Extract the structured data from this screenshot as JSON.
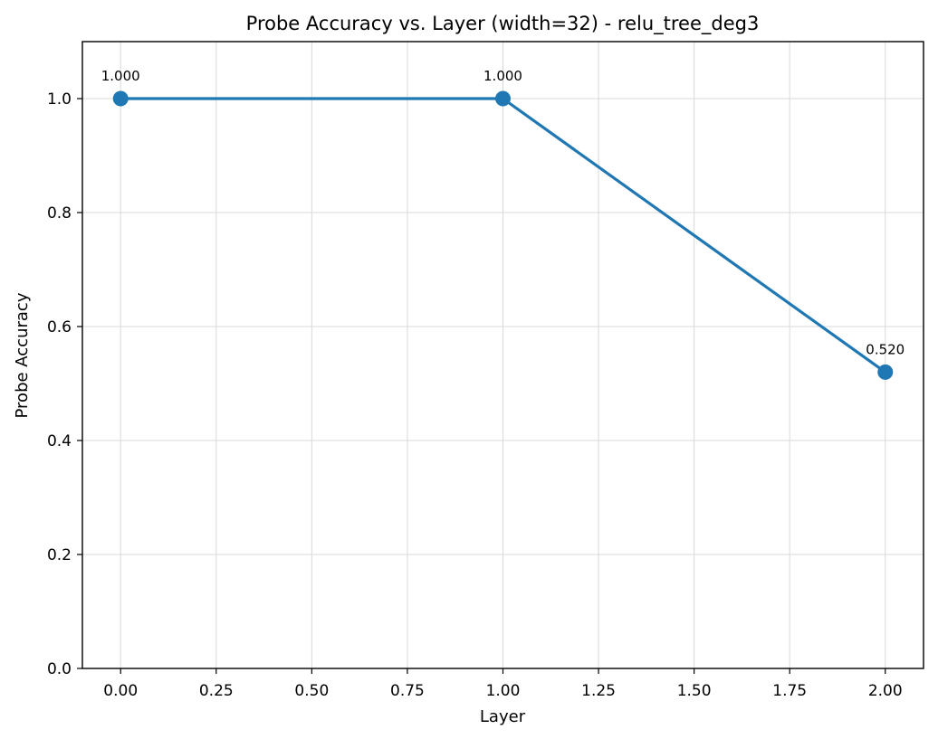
{
  "chart_data": {
    "type": "line",
    "title": "Probe Accuracy vs. Layer (width=32) - relu_tree_deg3",
    "xlabel": "Layer",
    "ylabel": "Probe Accuracy",
    "x": [
      0,
      1,
      2
    ],
    "series": [
      {
        "values": [
          1.0,
          1.0,
          0.52
        ],
        "labels": [
          "1.000",
          "1.000",
          "0.520"
        ]
      }
    ],
    "xlim": [
      -0.1,
      2.1
    ],
    "ylim": [
      0,
      1.1
    ],
    "xticks": [
      0,
      0.25,
      0.5,
      0.75,
      1.0,
      1.25,
      1.5,
      1.75,
      2.0
    ],
    "xtick_labels": [
      "0.00",
      "0.25",
      "0.50",
      "0.75",
      "1.00",
      "1.25",
      "1.50",
      "1.75",
      "2.00"
    ],
    "yticks": [
      0,
      0.2,
      0.4,
      0.6,
      0.8,
      1.0
    ],
    "ytick_labels": [
      "0.0",
      "0.2",
      "0.4",
      "0.6",
      "0.8",
      "1.0"
    ],
    "grid": true,
    "color": "#1f77b4"
  }
}
